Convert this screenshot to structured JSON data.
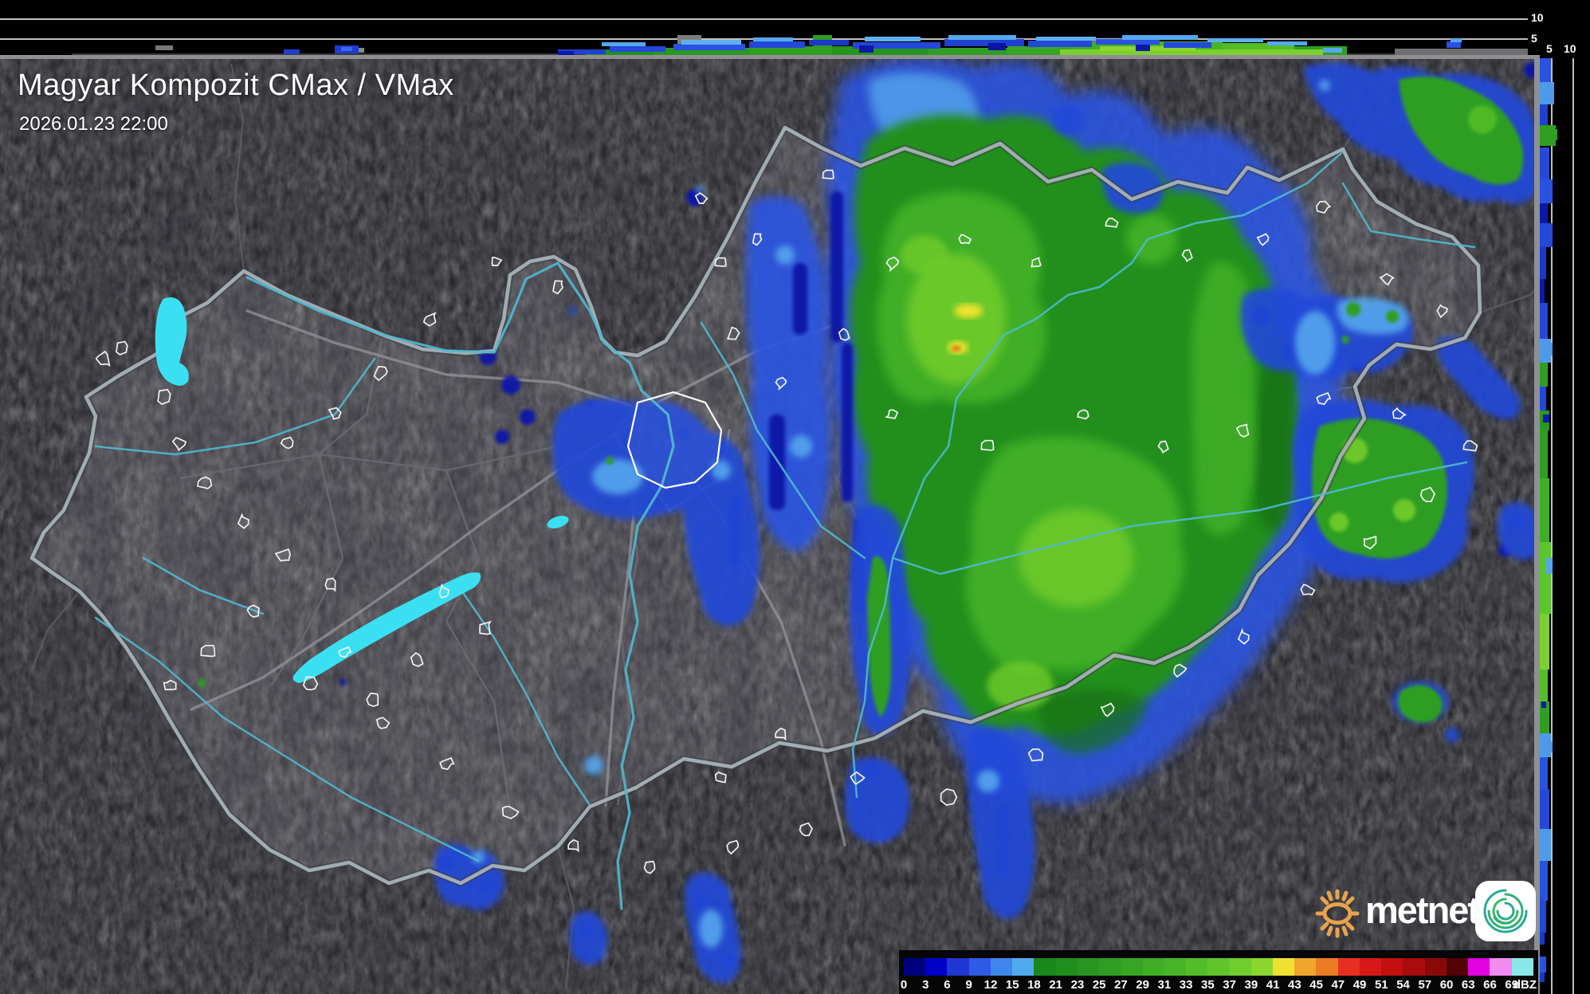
{
  "header": {
    "title": "Magyar Kompozit CMax / VMax",
    "timestamp": "2026.01.23 22:00"
  },
  "top_profile": {
    "ticks": [
      "10",
      "5"
    ]
  },
  "right_profile": {
    "ticks": [
      "5",
      "10"
    ]
  },
  "legend": {
    "unit": "dBZ",
    "ticks": [
      "0",
      "3",
      "6",
      "9",
      "12",
      "15",
      "18",
      "21",
      "23",
      "25",
      "27",
      "29",
      "31",
      "33",
      "35",
      "37",
      "39",
      "41",
      "43",
      "45",
      "47",
      "49",
      "51",
      "54",
      "57",
      "60",
      "63",
      "66",
      "69"
    ],
    "colors": [
      "#00007e",
      "#0000c8",
      "#1e36d2",
      "#2e5ae6",
      "#3f86ec",
      "#52aaee",
      "#19871c",
      "#1f8e1d",
      "#27951f",
      "#2f9d21",
      "#37a523",
      "#3fad25",
      "#47b527",
      "#53bd29",
      "#5fc52b",
      "#6fcd2d",
      "#8ad52e",
      "#f0e032",
      "#f0a62c",
      "#ec7c22",
      "#e62f20",
      "#d81818",
      "#c21010",
      "#a80c0c",
      "#8a0808",
      "#520202",
      "#e202e2",
      "#f08cf0",
      "#8ae8e8"
    ]
  },
  "logo": {
    "brand": "metnet"
  },
  "colors": {
    "panel_bg": "#000000",
    "separator": "#8e9094",
    "country_border": "#a9b2b8",
    "river": "#4fb9cf",
    "lake": "#3ae0f2"
  }
}
